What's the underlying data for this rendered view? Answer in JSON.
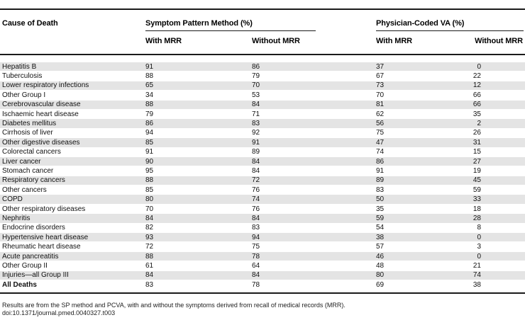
{
  "colors": {
    "stripe": "#e4e4e4",
    "rule": "#1a1a1a"
  },
  "table": {
    "cause_header": "Cause of Death",
    "group_headers": {
      "symptom_pattern": "Symptom Pattern Method (%)",
      "physician_coded": "Physician-Coded VA (%)"
    },
    "subheaders": {
      "sp_with": "With MRR",
      "sp_without": "Without MRR",
      "pcva_with": "With MRR",
      "pcva_without": "Without MRR"
    },
    "columns": [
      "Cause of Death",
      "SP With MRR",
      "SP Without MRR",
      "PCVA With MRR",
      "PCVA Without MRR"
    ],
    "rows": [
      [
        "Hepatitis B",
        91,
        86,
        37,
        0
      ],
      [
        "Tuberculosis",
        88,
        79,
        67,
        22
      ],
      [
        "Lower respiratory infections",
        65,
        70,
        73,
        12
      ],
      [
        "Other Group I",
        34,
        53,
        70,
        66
      ],
      [
        "Cerebrovascular disease",
        88,
        84,
        81,
        66
      ],
      [
        "Ischaemic heart disease",
        79,
        71,
        62,
        35
      ],
      [
        "Diabetes mellitus",
        86,
        83,
        56,
        2
      ],
      [
        "Cirrhosis of liver",
        94,
        92,
        75,
        26
      ],
      [
        "Other digestive diseases",
        85,
        91,
        47,
        31
      ],
      [
        "Colorectal cancers",
        91,
        89,
        74,
        15
      ],
      [
        "Liver cancer",
        90,
        84,
        86,
        27
      ],
      [
        "Stomach cancer",
        95,
        84,
        91,
        19
      ],
      [
        "Respiratory cancers",
        88,
        72,
        89,
        45
      ],
      [
        "Other cancers",
        85,
        76,
        83,
        59
      ],
      [
        "COPD",
        80,
        74,
        50,
        33
      ],
      [
        "Other respiratory diseases",
        70,
        76,
        35,
        18
      ],
      [
        "Nephritis",
        84,
        84,
        59,
        28
      ],
      [
        "Endocrine disorders",
        82,
        83,
        54,
        8
      ],
      [
        "Hypertensive heart disease",
        93,
        94,
        38,
        0
      ],
      [
        "Rheumatic heart disease",
        72,
        75,
        57,
        3
      ],
      [
        "Acute pancreatitis",
        88,
        78,
        46,
        0
      ],
      [
        "Other Group II",
        61,
        64,
        48,
        21
      ],
      [
        "Injuries—all Group III",
        84,
        84,
        80,
        74
      ]
    ],
    "total_row": [
      "All Deaths",
      83,
      78,
      69,
      38
    ]
  },
  "footer": {
    "note": "Results are from the SP method and PCVA, with and without the symptoms derived from recall of medical records (MRR).",
    "doi": "doi:10.1371/journal.pmed.0040327.t003"
  }
}
